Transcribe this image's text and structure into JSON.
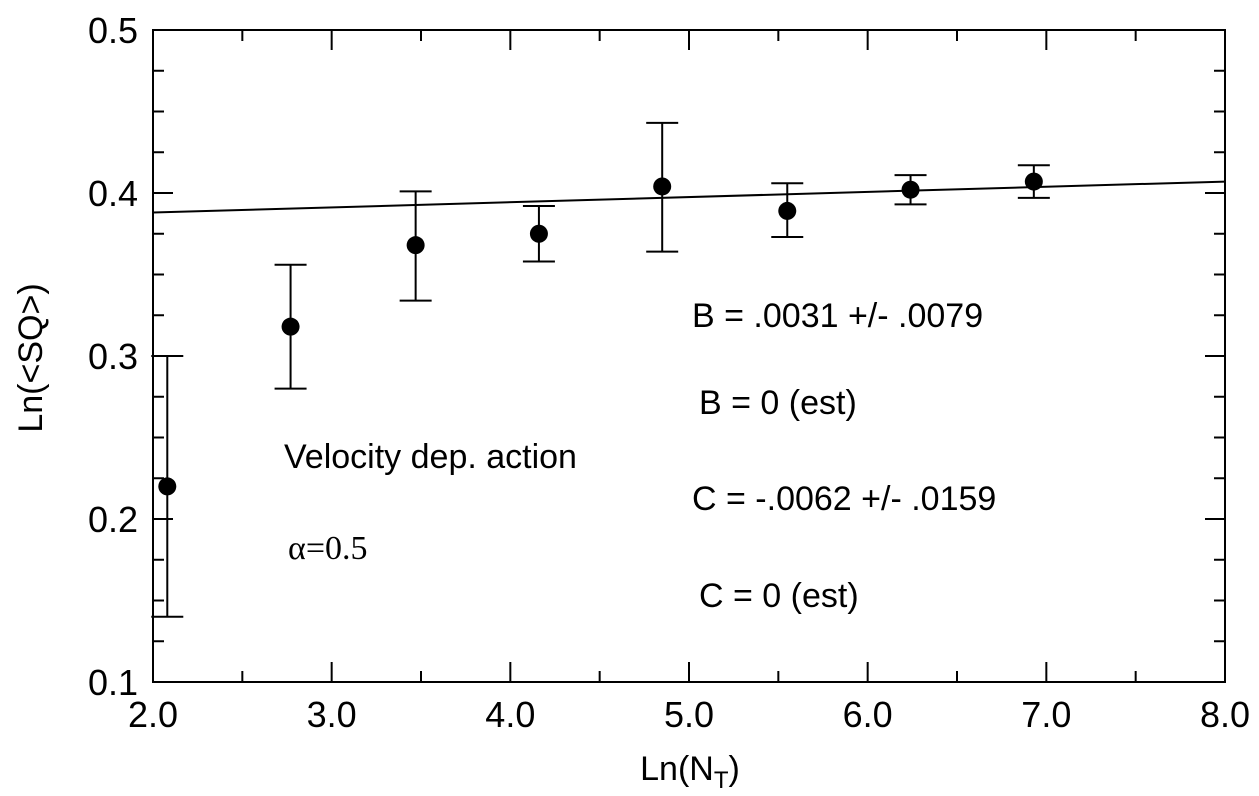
{
  "chart_data": {
    "type": "scatter",
    "xlabel": "Ln(N",
    "xlabel_sub": "T",
    "xlabel_close": ")",
    "ylabel": "Ln(<SQ>)",
    "xlim": [
      2.0,
      8.0
    ],
    "ylim": [
      0.1,
      0.5
    ],
    "x_ticks": [
      2.0,
      3.0,
      4.0,
      5.0,
      6.0,
      7.0,
      8.0
    ],
    "x_tick_labels": [
      "2.0",
      "3.0",
      "4.0",
      "5.0",
      "6.0",
      "7.0",
      "8.0"
    ],
    "y_ticks": [
      0.1,
      0.2,
      0.3,
      0.4,
      0.5
    ],
    "y_tick_labels": [
      "0.1",
      "0.2",
      "0.3",
      "0.4",
      "0.5"
    ],
    "grid": false,
    "points": [
      {
        "x": 2.08,
        "y": 0.22,
        "err_low": 0.14,
        "err_high": 0.3
      },
      {
        "x": 2.77,
        "y": 0.318,
        "err_low": 0.28,
        "err_high": 0.356
      },
      {
        "x": 3.47,
        "y": 0.368,
        "err_low": 0.334,
        "err_high": 0.401
      },
      {
        "x": 4.16,
        "y": 0.375,
        "err_low": 0.358,
        "err_high": 0.392
      },
      {
        "x": 4.85,
        "y": 0.404,
        "err_low": 0.364,
        "err_high": 0.443
      },
      {
        "x": 5.55,
        "y": 0.389,
        "err_low": 0.373,
        "err_high": 0.406
      },
      {
        "x": 6.24,
        "y": 0.402,
        "err_low": 0.393,
        "err_high": 0.411
      },
      {
        "x": 6.93,
        "y": 0.407,
        "err_low": 0.397,
        "err_high": 0.417
      }
    ],
    "fit_line": {
      "x": [
        2.0,
        8.0
      ],
      "y": [
        0.388,
        0.407
      ]
    },
    "annotations": {
      "b_fit": "B = .0031 +/- .0079",
      "b_est": "B = 0 (est)",
      "c_fit": "C = -.0062 +/- .0159",
      "c_est": "C = 0 (est)",
      "action": "Velocity dep. action",
      "alpha": "α=0.5"
    }
  }
}
